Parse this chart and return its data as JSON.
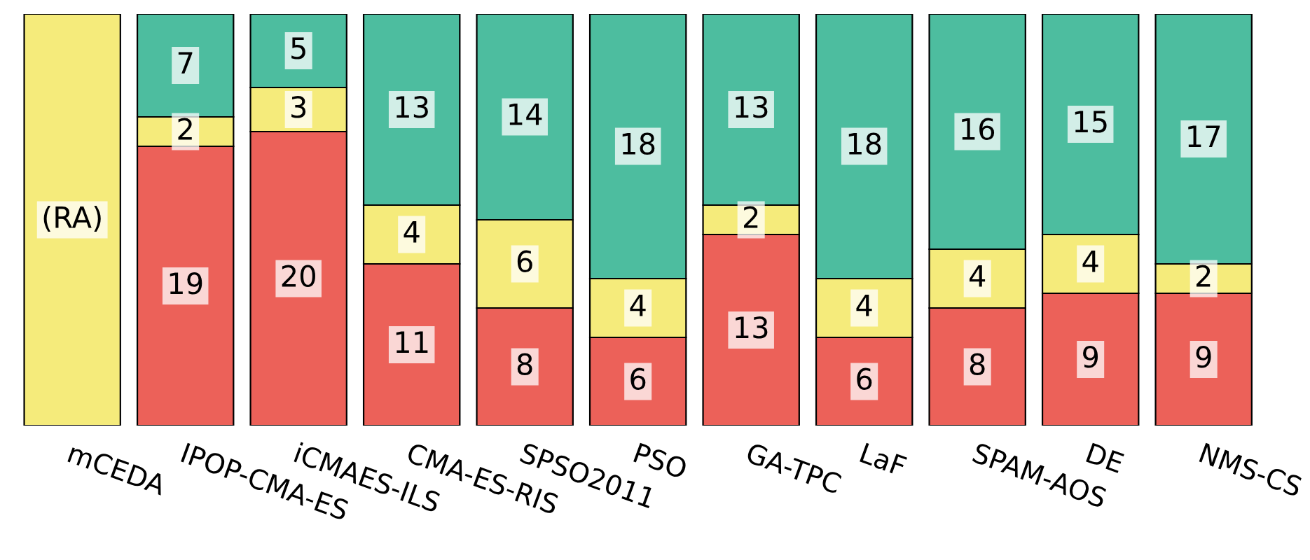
{
  "chart_data": {
    "type": "bar",
    "stacked": true,
    "categories": [
      "mCEDA",
      "IPOP-CMA-ES",
      "iCMAES-ILS",
      "CMA-ES-RIS",
      "SPSO2011",
      "PSO",
      "GA-TPC",
      "LaF",
      "SPAM-AOS",
      "DE",
      "NMS-CS"
    ],
    "series": [
      {
        "color": "#ec6159",
        "values": [
          null,
          19,
          20,
          11,
          8,
          6,
          13,
          6,
          8,
          9,
          9
        ],
        "value_labels": [
          null,
          "19",
          "20",
          "11",
          "8",
          "6",
          "13",
          "6",
          "8",
          "9",
          "9"
        ]
      },
      {
        "color": "#f5eb7b",
        "values": [
          28,
          2,
          3,
          4,
          6,
          4,
          2,
          4,
          4,
          4,
          2
        ],
        "value_labels": [
          "(RA)",
          "2",
          "3",
          "4",
          "6",
          "4",
          "2",
          "4",
          "4",
          "4",
          "2"
        ]
      },
      {
        "color": "#4dbd9f",
        "values": [
          null,
          7,
          5,
          13,
          14,
          18,
          13,
          18,
          16,
          15,
          17
        ],
        "value_labels": [
          null,
          "7",
          "5",
          "13",
          "14",
          "18",
          "13",
          "18",
          "16",
          "15",
          "17"
        ]
      }
    ],
    "ylim": [
      0,
      28
    ],
    "tick_labels": "x",
    "grid": false,
    "legend": false
  }
}
